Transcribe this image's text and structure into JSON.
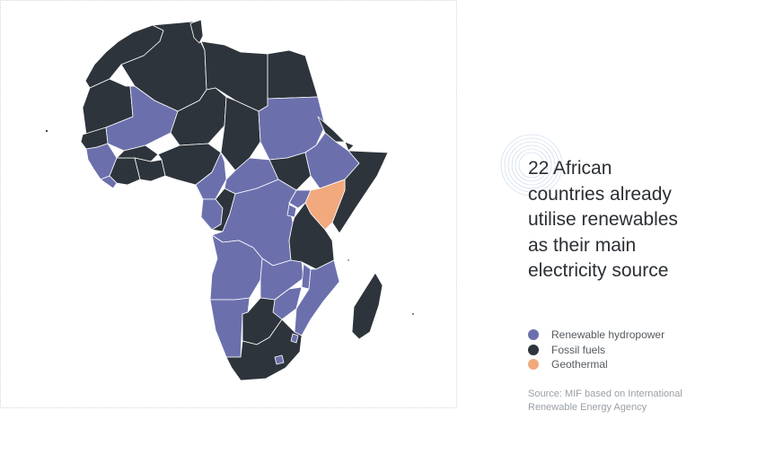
{
  "headline": {
    "lines": [
      "22 African",
      "countries already",
      "utilise renewables",
      "as their main",
      "electricity source"
    ]
  },
  "legend": [
    {
      "label": "Renewable hydropower",
      "color": "#6b70ad"
    },
    {
      "label": "Fossil fuels",
      "color": "#2e343b"
    },
    {
      "label": "Geothermal",
      "color": "#f2a97e"
    }
  ],
  "source": {
    "lines": [
      "Source: MIF based on International",
      "Renewable Energy Agency"
    ]
  },
  "colors": {
    "hydro": "#6b70ad",
    "fossil": "#2e343b",
    "geothermal": "#f2a97e",
    "border": "#ffffff",
    "deco_ring": "#c5d6e8"
  }
}
